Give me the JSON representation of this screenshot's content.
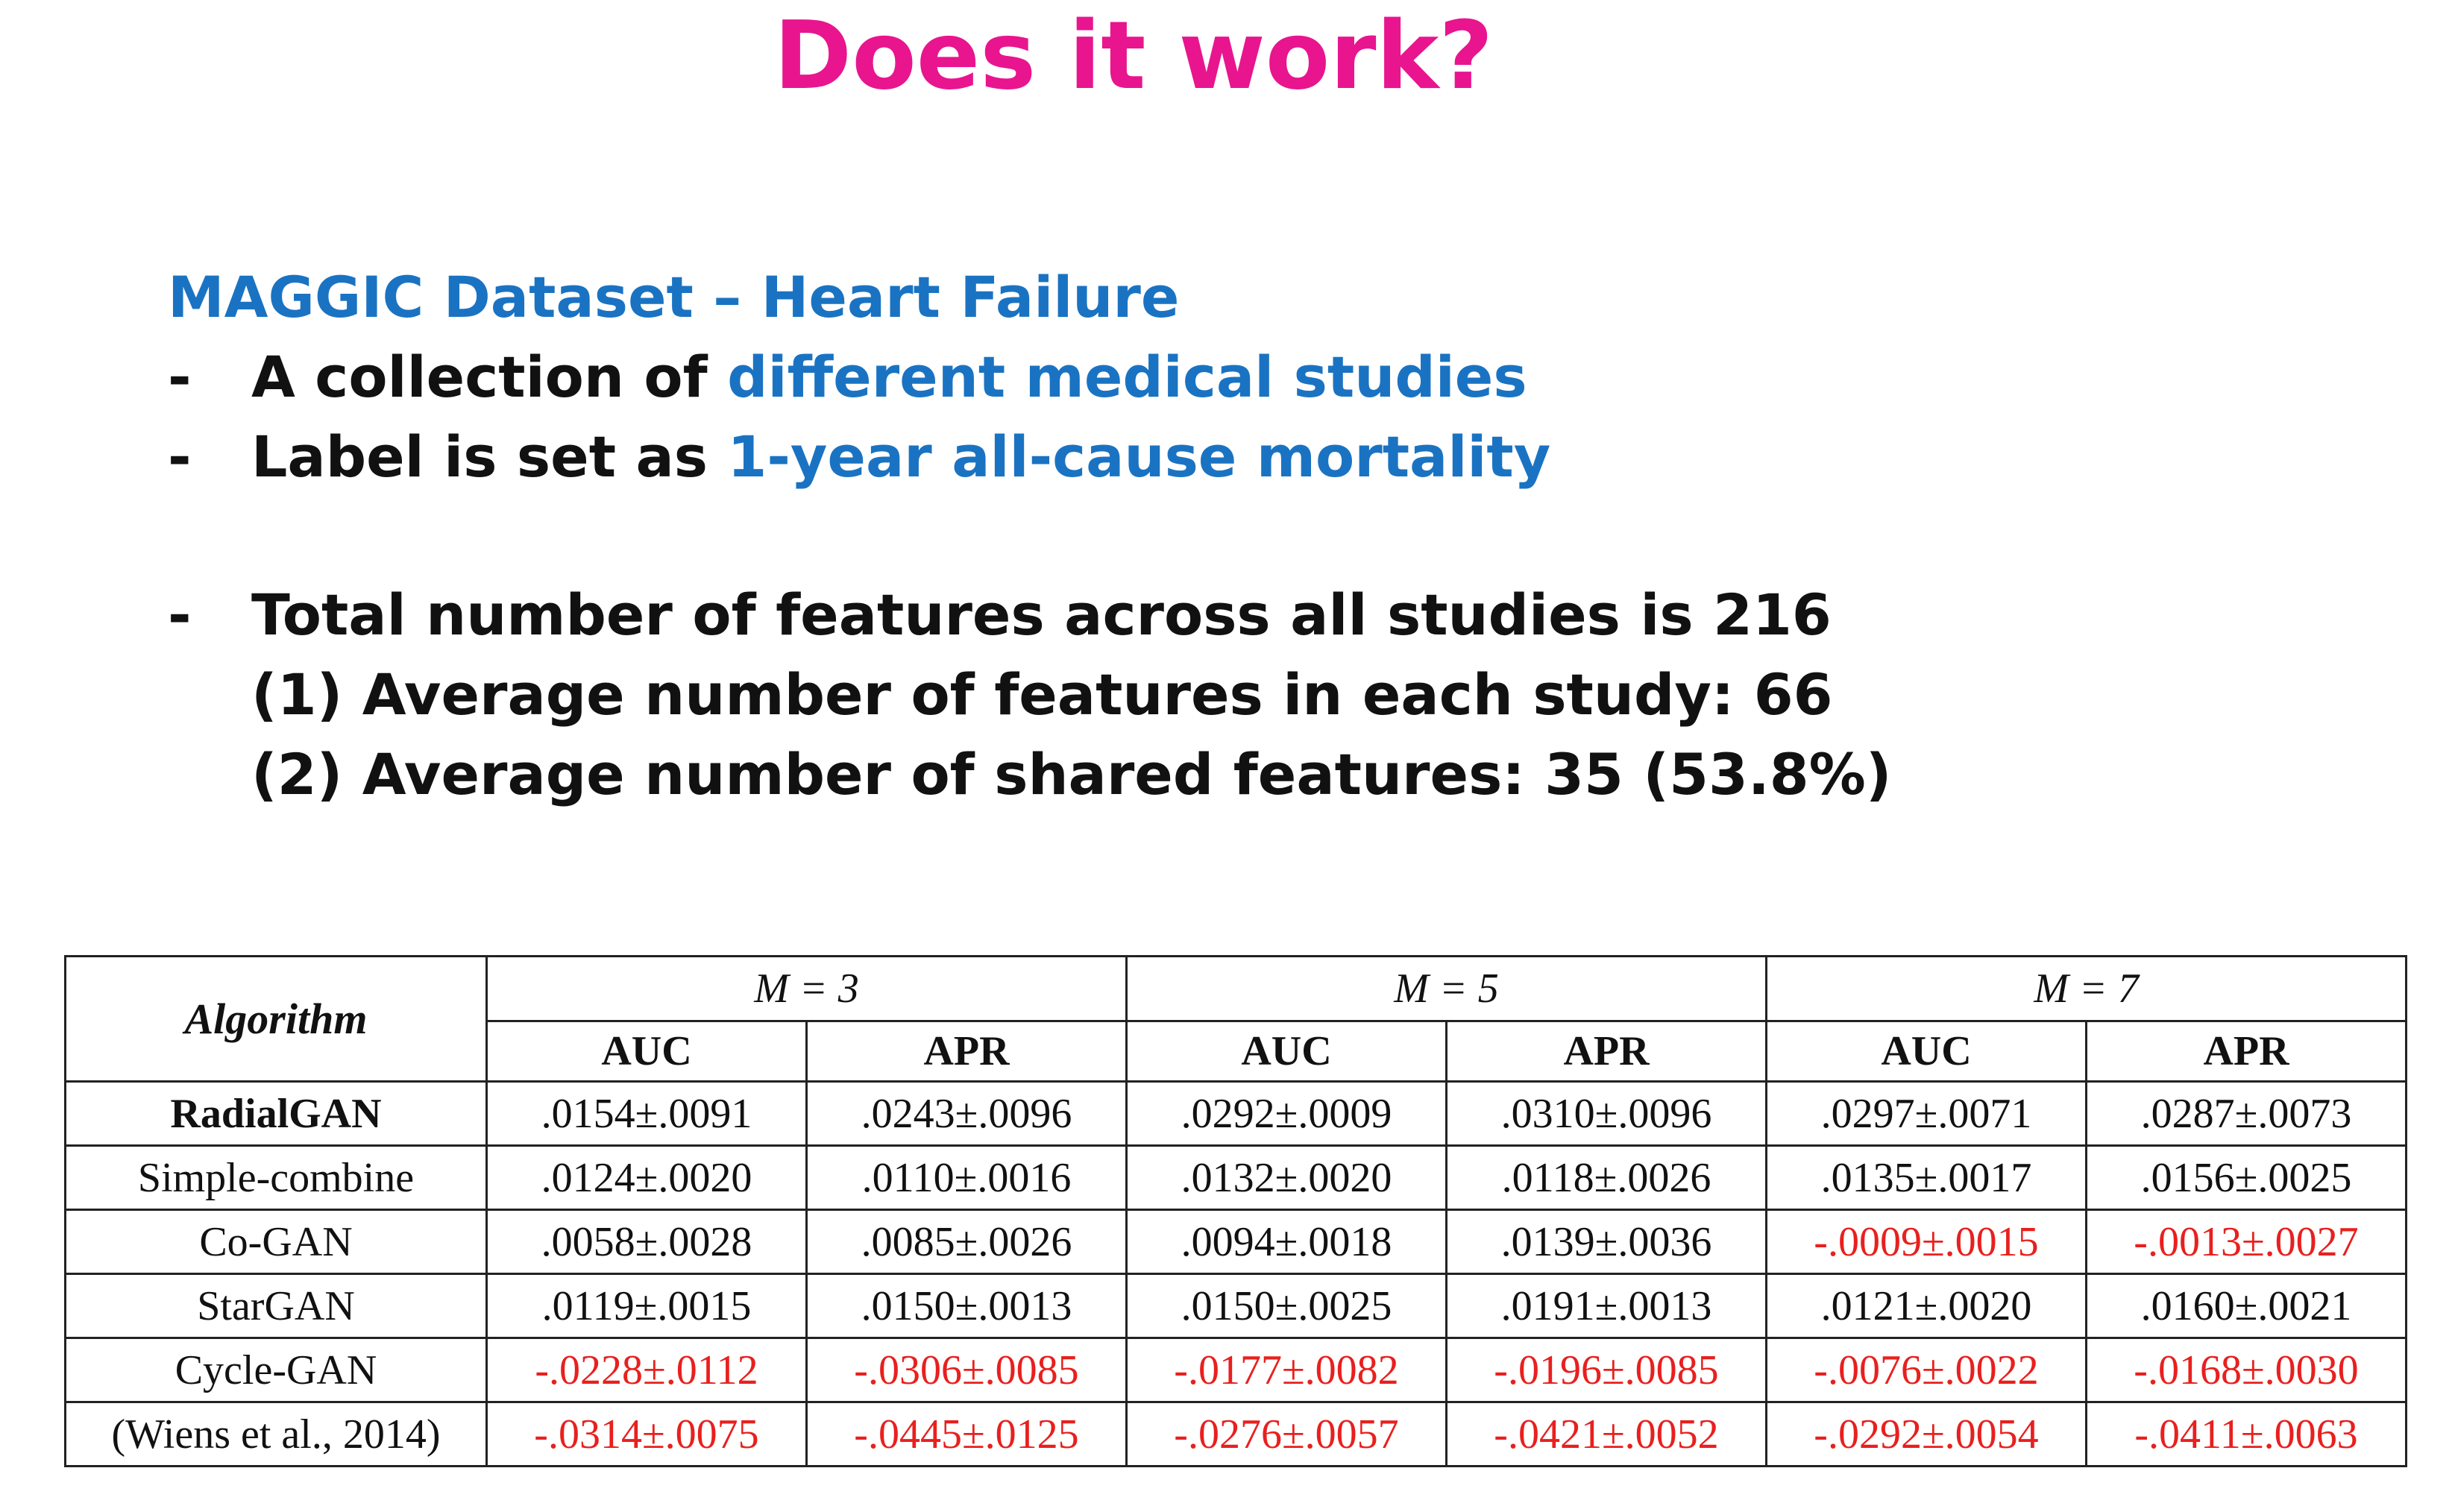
{
  "slide": {
    "title": "Does it work?",
    "heading": "MAGGIC Dataset – Heart Failure",
    "bullets": [
      {
        "dash": "-",
        "prefix": "A collection of ",
        "highlight": "different medical studies"
      },
      {
        "dash": "-",
        "prefix": "Label is set as ",
        "highlight": "1-year all-cause mortality"
      },
      {
        "dash": "-",
        "text": "Total number of features across all studies is 216"
      }
    ],
    "sub_items": [
      "(1) Average number of features in each study: 66",
      "(2) Average number of shared features: 35 (53.8%)"
    ],
    "colors": {
      "title": "#e8158f",
      "highlight": "#1a73c2",
      "negative_value": "#e8201e",
      "text": "#111111"
    }
  },
  "table": {
    "algorithm_header": "Algorithm",
    "groups": [
      "M = 3",
      "M = 5",
      "M = 7"
    ],
    "metrics": [
      "AUC",
      "APR",
      "AUC",
      "APR",
      "AUC",
      "APR"
    ],
    "rows": [
      {
        "algorithm": "RadialGAN",
        "bold": true,
        "values": [
          ".0154±.0091",
          ".0243±.0096",
          ".0292±.0009",
          ".0310±.0096",
          ".0297±.0071",
          ".0287±.0073"
        ]
      },
      {
        "algorithm": "Simple-combine",
        "bold": false,
        "values": [
          ".0124±.0020",
          ".0110±.0016",
          ".0132±.0020",
          ".0118±.0026",
          ".0135±.0017",
          ".0156±.0025"
        ]
      },
      {
        "algorithm": "Co-GAN",
        "bold": false,
        "values": [
          ".0058±.0028",
          ".0085±.0026",
          ".0094±.0018",
          ".0139±.0036",
          "-.0009±.0015",
          "-.0013±.0027"
        ]
      },
      {
        "algorithm": "StarGAN",
        "bold": false,
        "values": [
          ".0119±.0015",
          ".0150±.0013",
          ".0150±.0025",
          ".0191±.0013",
          ".0121±.0020",
          ".0160±.0021"
        ]
      },
      {
        "algorithm": "Cycle-GAN",
        "bold": false,
        "values": [
          "-.0228±.0112",
          "-.0306±.0085",
          "-.0177±.0082",
          "-.0196±.0085",
          "-.0076±.0022",
          "-.0168±.0030"
        ]
      },
      {
        "algorithm": "(Wiens et al., 2014)",
        "bold": false,
        "values": [
          "-.0314±.0075",
          "-.0445±.0125",
          "-.0276±.0057",
          "-.0421±.0052",
          "-.0292±.0054",
          "-.0411±.0063"
        ]
      }
    ]
  }
}
